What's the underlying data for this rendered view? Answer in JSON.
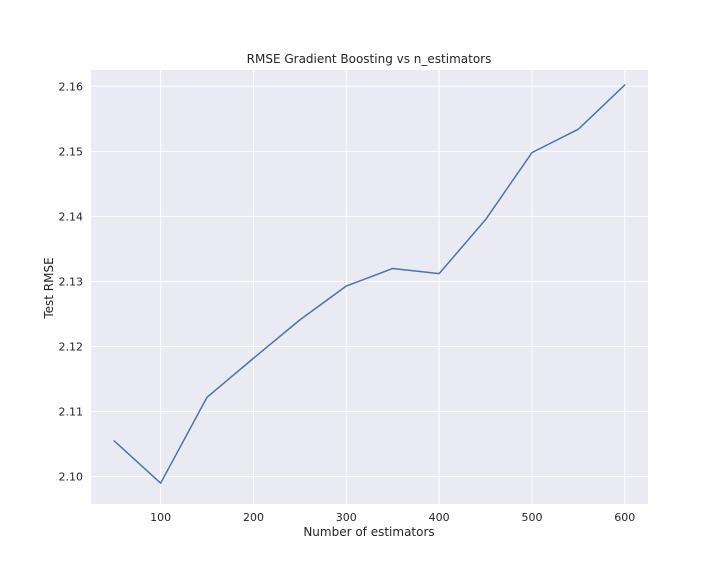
{
  "chart_data": {
    "type": "line",
    "title": "RMSE Gradient Boosting vs n_estimators",
    "xlabel": "Number of estimators",
    "ylabel": "Test RMSE",
    "x": [
      50,
      100,
      150,
      200,
      250,
      300,
      350,
      400,
      450,
      500,
      550,
      600
    ],
    "series": [
      {
        "values": [
          2.1055,
          2.099,
          2.1122,
          2.1182,
          2.1241,
          2.1293,
          2.132,
          2.1312,
          2.1395,
          2.1498,
          2.1534,
          2.1602
        ]
      }
    ],
    "xticks": [
      100,
      200,
      300,
      400,
      500,
      600
    ],
    "yticks": [
      2.1,
      2.11,
      2.12,
      2.13,
      2.14,
      2.15,
      2.16
    ],
    "ytick_labels": [
      "2.10",
      "2.11",
      "2.12",
      "2.13",
      "2.14",
      "2.15",
      "2.16"
    ],
    "xlim": [
      25,
      625
    ],
    "ylim": [
      2.0958,
      2.1625
    ],
    "grid": true,
    "colors": {
      "background": "#eaeaf2",
      "grid": "#ffffff",
      "line": "#4c72b0",
      "text": "#262626"
    }
  }
}
